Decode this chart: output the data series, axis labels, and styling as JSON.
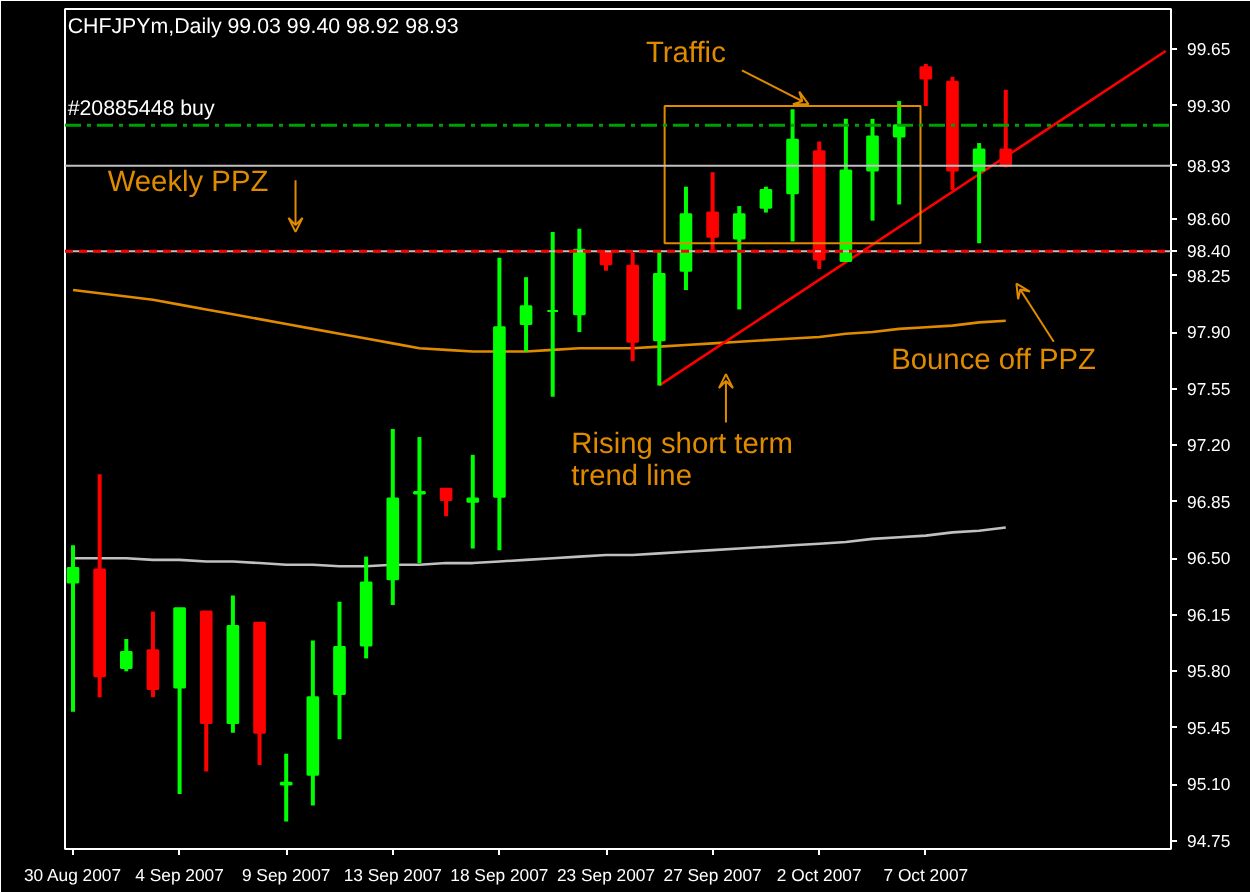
{
  "chart_data": {
    "type": "candlestick",
    "title": "CHFJPYm,Daily  99.03 99.40 98.92 98.93",
    "categories": [
      "30 Aug 2007",
      null,
      null,
      null,
      "4 Sep 2007",
      null,
      null,
      null,
      "9 Sep 2007",
      null,
      null,
      null,
      "13 Sep 2007",
      null,
      null,
      null,
      "18 Sep 2007",
      null,
      null,
      null,
      "23 Sep 2007",
      null,
      null,
      null,
      "27 Sep 2007",
      null,
      null,
      null,
      "2 Oct 2007",
      null,
      null,
      null,
      "7 Oct 2007",
      null,
      null,
      null,
      null,
      null,
      null,
      null,
      null,
      null
    ],
    "ohlc": [
      [
        96.35,
        96.58,
        95.55,
        96.44
      ],
      [
        96.43,
        97.02,
        95.64,
        95.77
      ],
      [
        95.82,
        96.0,
        95.8,
        95.92
      ],
      [
        95.93,
        96.17,
        95.64,
        95.69
      ],
      [
        95.7,
        96.19,
        95.04,
        96.19
      ],
      [
        96.17,
        96.17,
        95.18,
        95.48
      ],
      [
        95.48,
        96.27,
        95.42,
        96.08
      ],
      [
        96.1,
        96.1,
        95.22,
        95.42
      ],
      [
        95.1,
        95.29,
        94.87,
        95.11
      ],
      [
        95.16,
        95.99,
        94.97,
        95.64
      ],
      [
        95.66,
        96.23,
        95.38,
        95.95
      ],
      [
        95.96,
        96.51,
        95.88,
        96.35
      ],
      [
        96.37,
        97.3,
        96.21,
        96.87
      ],
      [
        96.9,
        97.25,
        96.47,
        96.91
      ],
      [
        96.93,
        96.93,
        96.76,
        96.86
      ],
      [
        96.85,
        97.14,
        96.56,
        96.87
      ],
      [
        96.88,
        98.36,
        96.55,
        97.93
      ],
      [
        97.95,
        98.24,
        97.78,
        98.06
      ],
      [
        98.03,
        98.52,
        97.5,
        98.03
      ],
      [
        98.01,
        98.54,
        97.9,
        98.41
      ],
      [
        98.39,
        98.39,
        98.28,
        98.32
      ],
      [
        98.31,
        98.39,
        97.72,
        97.84
      ],
      [
        97.85,
        98.4,
        97.57,
        98.26
      ],
      [
        98.28,
        98.8,
        98.16,
        98.63
      ],
      [
        98.64,
        98.89,
        98.41,
        98.49
      ],
      [
        98.48,
        98.68,
        98.04,
        98.63
      ],
      [
        98.67,
        98.8,
        98.64,
        98.78
      ],
      [
        98.76,
        99.28,
        98.46,
        99.09
      ],
      [
        99.02,
        99.08,
        98.29,
        98.35
      ],
      [
        98.34,
        99.22,
        98.34,
        98.9
      ],
      [
        98.9,
        99.22,
        98.59,
        99.11
      ],
      [
        99.11,
        99.33,
        98.69,
        99.18
      ],
      [
        99.54,
        99.56,
        99.3,
        99.47
      ],
      [
        99.45,
        99.48,
        98.78,
        98.9
      ],
      [
        98.9,
        99.07,
        98.45,
        99.03
      ],
      [
        99.03,
        99.4,
        98.92,
        98.93
      ],
      null,
      null,
      null,
      null,
      null,
      null
    ],
    "colors": [
      "#00ff00",
      "#ff0000",
      "#00ff00",
      "#ff0000",
      "#00ff00",
      "#ff0000",
      "#00ff00",
      "#ff0000",
      "#00ff00",
      "#00ff00",
      "#00ff00",
      "#00ff00",
      "#00ff00",
      "#00ff00",
      "#ff0000",
      "#00ff00",
      "#00ff00",
      "#00ff00",
      "#00ff00",
      "#00ff00",
      "#ff0000",
      "#ff0000",
      "#00ff00",
      "#00ff00",
      "#ff0000",
      "#00ff00",
      "#00ff00",
      "#00ff00",
      "#ff0000",
      "#00ff00",
      "#00ff00",
      "#00ff00",
      "#ff0000",
      "#ff0000",
      "#00ff00",
      "#ff0000",
      null,
      null,
      null,
      null,
      null,
      null
    ],
    "series": [
      {
        "type": "line",
        "color": "#e08a00",
        "values": [
          98.16,
          98.14,
          98.12,
          98.1,
          98.07,
          98.04,
          98.01,
          97.98,
          97.95,
          97.92,
          97.89,
          97.86,
          97.83,
          97.8,
          97.79,
          97.78,
          97.78,
          97.78,
          97.79,
          97.8,
          97.8,
          97.8,
          97.81,
          97.82,
          97.83,
          97.84,
          97.85,
          97.86,
          97.87,
          97.89,
          97.9,
          97.92,
          97.93,
          97.94,
          97.96,
          97.97,
          null,
          null,
          null,
          null,
          null,
          null
        ]
      },
      {
        "type": "line",
        "color": "#c0c0c0",
        "values": [
          96.5,
          96.5,
          96.5,
          96.49,
          96.49,
          96.48,
          96.48,
          96.47,
          96.46,
          96.46,
          96.45,
          96.45,
          96.46,
          96.46,
          96.47,
          96.47,
          96.48,
          96.49,
          96.5,
          96.51,
          96.52,
          96.52,
          96.53,
          96.54,
          96.55,
          96.56,
          96.57,
          96.58,
          96.59,
          96.6,
          96.62,
          96.63,
          96.64,
          96.66,
          96.67,
          96.69,
          null,
          null,
          null,
          null,
          null,
          null
        ]
      },
      {
        "type": "line",
        "color": "#ff0000",
        "values": [
          null,
          null,
          null,
          null,
          null,
          null,
          null,
          null,
          null,
          null,
          null,
          null,
          null,
          null,
          null,
          null,
          null,
          null,
          null,
          null,
          null,
          null,
          97.57,
          null,
          null,
          null,
          null,
          null,
          null,
          null,
          null,
          null,
          null,
          null,
          null,
          null,
          null,
          null,
          null,
          null,
          null,
          99.64
        ]
      }
    ],
    "ylim": [
      94.7,
      99.9
    ],
    "yticks": [
      99.65,
      {
        "value": 99.3,
        "label": "99.30"
      },
      {
        "value": 98.6,
        "label": "98.60"
      },
      98.25,
      {
        "value": 97.9,
        "label": "97.90"
      },
      97.55,
      {
        "value": 97.2,
        "label": "97.20"
      },
      96.85,
      {
        "value": 96.5,
        "label": "96.50"
      },
      96.15,
      {
        "value": 95.8,
        "label": "95.80"
      },
      95.45,
      {
        "value": 95.1,
        "label": "95.10"
      },
      94.75
    ],
    "ref_lines": [
      {
        "axis": "y",
        "value": 98.4,
        "label": "98.40",
        "color": "#c0c0c0",
        "line_style": "solid"
      },
      {
        "axis": "y",
        "value": 98.4,
        "color": "#ff0000",
        "line_style": "dashed"
      },
      {
        "axis": "y",
        "value": 98.93,
        "label": "98.93",
        "color": "#c0c0c0",
        "line_style": "solid"
      },
      {
        "axis": "y",
        "value": 99.18,
        "label": "#20885448 buy",
        "color": "#00a000",
        "line_style": "dashdot"
      }
    ],
    "annotations": [
      "Traffic",
      "Weekly PPZ",
      "Rising short term\ntrend line",
      "Bounce off PPZ"
    ],
    "grid": false
  }
}
